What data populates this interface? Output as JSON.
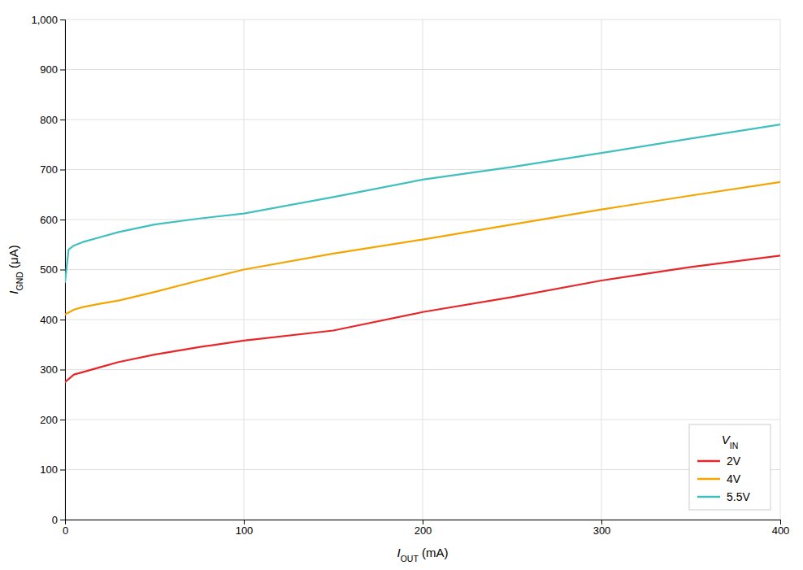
{
  "chart_data": {
    "type": "line",
    "x_label": "IOUT (mA)",
    "y_label": "IGND (μA)",
    "legend_title": "VIN",
    "xlim": [
      0,
      400
    ],
    "ylim": [
      0,
      1000
    ],
    "xticks": [
      0,
      100,
      200,
      300,
      400
    ],
    "yticks": [
      0,
      100,
      200,
      300,
      400,
      500,
      600,
      700,
      800,
      900,
      {
        "value": 1000,
        "label": "1,000"
      }
    ],
    "grid": true,
    "legend": "lower right",
    "series": [
      {
        "name": "2V",
        "color": "#e8262a",
        "x": [
          0,
          5,
          10,
          20,
          30,
          50,
          75,
          100,
          150,
          200,
          250,
          300,
          350,
          400
        ],
        "values": [
          275,
          290,
          295,
          305,
          315,
          330,
          345,
          358,
          378,
          415,
          445,
          478,
          505,
          528
        ]
      },
      {
        "name": "4V",
        "color": "#f5a500",
        "x": [
          0,
          5,
          10,
          20,
          30,
          50,
          75,
          100,
          150,
          200,
          250,
          300,
          350,
          400
        ],
        "values": [
          410,
          420,
          425,
          432,
          438,
          455,
          478,
          500,
          532,
          560,
          590,
          620,
          648,
          675
        ]
      },
      {
        "name": "5.5V",
        "color": "#40bfbf",
        "x": [
          0,
          2,
          5,
          10,
          20,
          30,
          50,
          75,
          100,
          150,
          200,
          250,
          300,
          350,
          400
        ],
        "values": [
          475,
          540,
          548,
          555,
          565,
          575,
          590,
          602,
          612,
          645,
          680,
          705,
          733,
          762,
          790
        ]
      }
    ]
  }
}
